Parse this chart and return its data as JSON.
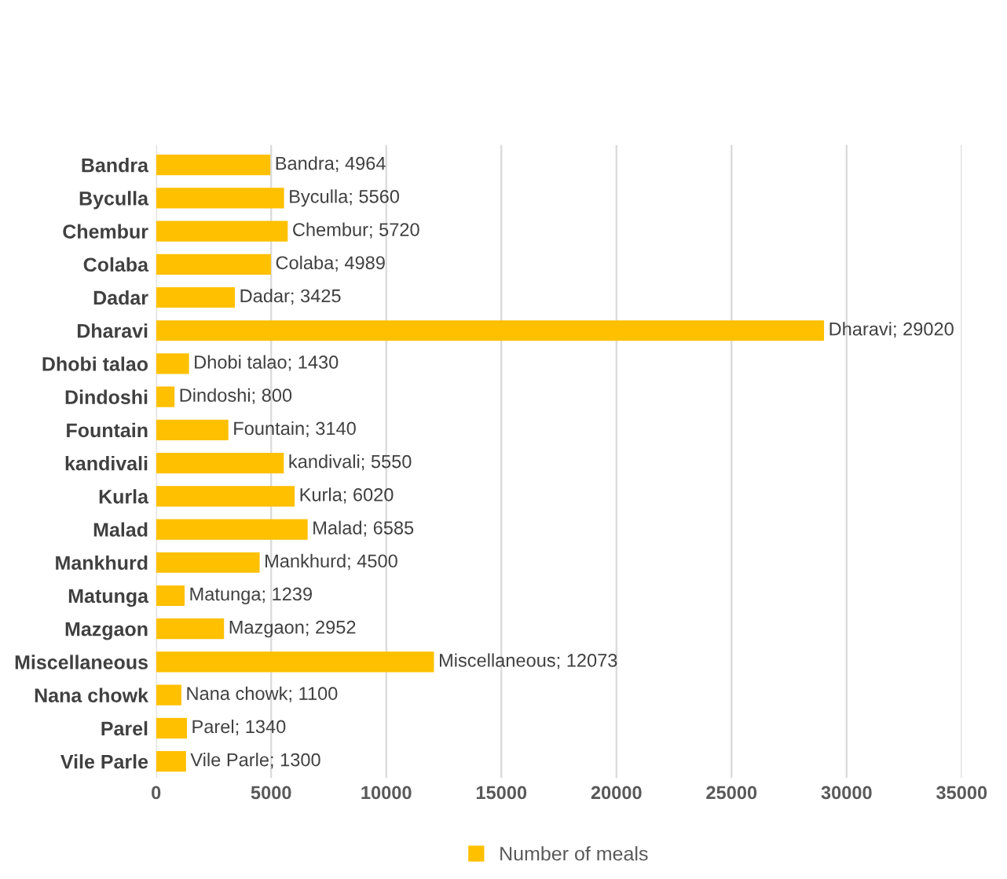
{
  "chart_data": {
    "type": "bar",
    "orientation": "horizontal",
    "categories": [
      "Bandra",
      "Byculla",
      "Chembur",
      "Colaba",
      "Dadar",
      "Dharavi",
      "Dhobi talao",
      "Dindoshi",
      "Fountain",
      "kandivali",
      "Kurla",
      "Malad",
      "Mankhurd",
      "Matunga",
      "Mazgaon",
      "Miscellaneous",
      "Nana chowk",
      "Parel",
      "Vile Parle"
    ],
    "series": [
      {
        "name": "Number of meals",
        "color": "#ffc000",
        "values": [
          4964,
          5560,
          5720,
          4989,
          3425,
          29020,
          1430,
          800,
          3140,
          5550,
          6020,
          6585,
          4500,
          1239,
          2952,
          12073,
          1100,
          1340,
          1300
        ],
        "value_labels": [
          "Bandra; 4964",
          "Byculla; 5560",
          "Chembur; 5720",
          "Colaba; 4989",
          "Dadar; 3425",
          "Dharavi; 29020",
          "Dhobi talao; 1430",
          "Dindoshi; 800",
          "Fountain; 3140",
          "kandivali; 5550",
          "Kurla; 6020",
          "Malad; 6585",
          "Mankhurd; 4500",
          "Matunga; 1239",
          "Mazgaon; 2952",
          "Miscellaneous; 12073",
          "Nana chowk; 1100",
          "Parel; 1340",
          "Vile Parle; 1300"
        ]
      }
    ],
    "xlim": [
      0,
      35000
    ],
    "xticks": [
      0,
      5000,
      10000,
      15000,
      20000,
      25000,
      30000,
      35000
    ],
    "grid": "x",
    "legend": "bottom"
  }
}
